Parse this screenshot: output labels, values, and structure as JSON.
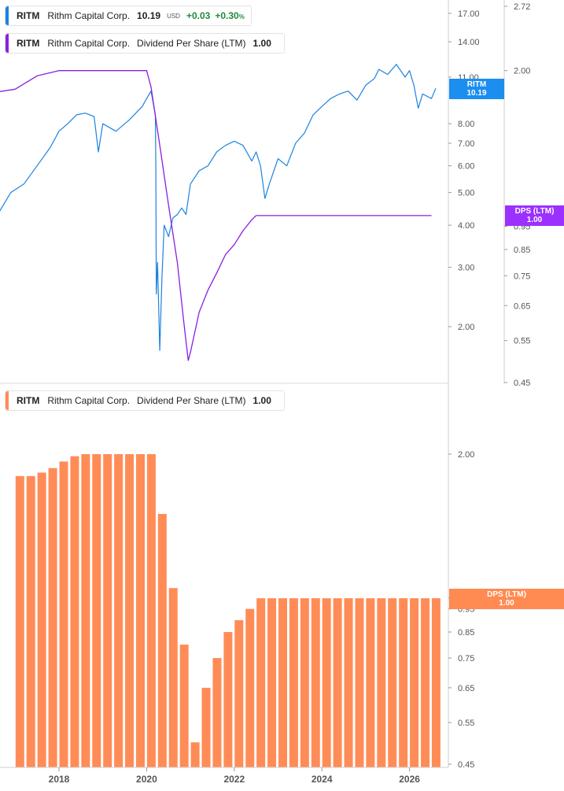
{
  "colors": {
    "price": "#1b83e0",
    "dps_line": "#8a1fe0",
    "dps_bars": "#ff8c57",
    "tag_price": "#1b8ef0",
    "tag_dps_top": "#9b30ff",
    "tag_dps_bottom": "#ff8a52",
    "positive": "#1f8a3a"
  },
  "legend_price": {
    "ticker": "RITM",
    "name": "Rithm Capital Corp.",
    "price": "10.19",
    "currency": "USD",
    "change": "+0.03",
    "change_pct": "+0.30",
    "pct_sign": "%"
  },
  "legend_dps_top": {
    "ticker": "RITM",
    "name": "Rithm Capital Corp.",
    "metric": "Dividend Per Share (LTM)",
    "value": "1.00"
  },
  "legend_dps_bottom": {
    "ticker": "RITM",
    "name": "Rithm Capital Corp.",
    "metric": "Dividend Per Share (LTM)",
    "value": "1.00"
  },
  "tags": {
    "price_label": "RITM",
    "price_value": "10.19",
    "dps_top_label": "DPS (LTM)",
    "dps_top_value": "1.00",
    "dps_bottom_label": "DPS (LTM)",
    "dps_bottom_value": "1.00"
  },
  "chart_data": [
    {
      "type": "line",
      "scale": "log",
      "series": [
        {
          "name": "RITM",
          "x": [
            2016.0,
            2016.3,
            2016.6,
            2016.9,
            2017.2,
            2017.5,
            2017.8,
            2018.0,
            2018.2,
            2018.4,
            2018.6,
            2018.8,
            2018.9,
            2019.0,
            2019.3,
            2019.6,
            2019.9,
            2020.0,
            2020.1,
            2020.2,
            2020.21,
            2020.22,
            2020.25,
            2020.3,
            2020.35,
            2020.4,
            2020.5,
            2020.6,
            2020.7,
            2020.8,
            2020.9,
            2021.0,
            2021.2,
            2021.4,
            2021.6,
            2021.8,
            2022.0,
            2022.2,
            2022.4,
            2022.5,
            2022.6,
            2022.7,
            2022.8,
            2023.0,
            2023.2,
            2023.4,
            2023.6,
            2023.8,
            2024.0,
            2024.2,
            2024.4,
            2024.6,
            2024.8,
            2025.0,
            2025.2,
            2025.3,
            2025.5,
            2025.7,
            2025.9,
            2026.0,
            2026.1,
            2026.2,
            2026.3,
            2026.5,
            2026.6
          ],
          "values": [
            3.0,
            3.4,
            4.3,
            5.0,
            5.3,
            6.0,
            6.8,
            7.6,
            8.0,
            8.5,
            8.6,
            8.4,
            6.6,
            8.0,
            7.6,
            8.2,
            9.0,
            9.5,
            10.0,
            8.5,
            6.0,
            2.5,
            3.1,
            1.7,
            2.8,
            4.0,
            3.7,
            4.2,
            4.3,
            4.5,
            4.3,
            5.3,
            5.8,
            6.0,
            6.6,
            6.9,
            7.1,
            6.9,
            6.2,
            6.6,
            6.0,
            4.8,
            5.3,
            6.3,
            6.0,
            7.0,
            7.5,
            8.5,
            9.0,
            9.5,
            9.8,
            10.0,
            9.4,
            10.4,
            10.9,
            11.6,
            11.2,
            12.0,
            11.0,
            11.5,
            10.4,
            8.9,
            9.8,
            9.5,
            10.19
          ]
        },
        {
          "name": "DPS (LTM)",
          "x": [
            2016.0,
            2016.5,
            2017.0,
            2017.5,
            2018.0,
            2018.5,
            2019.0,
            2019.5,
            2020.0,
            2020.1,
            2020.3,
            2020.5,
            2020.7,
            2020.85,
            2020.95,
            2021.0,
            2021.2,
            2021.4,
            2021.6,
            2021.8,
            2022.0,
            2022.2,
            2022.4,
            2022.5,
            2023.0,
            2023.5,
            2024.0,
            2024.5,
            2025.0,
            2025.5,
            2026.0,
            2026.5
          ],
          "values": [
            1.8,
            1.8,
            1.83,
            1.95,
            2.0,
            2.0,
            2.0,
            2.0,
            2.0,
            1.85,
            1.4,
            1.05,
            0.8,
            0.6,
            0.5,
            0.52,
            0.63,
            0.7,
            0.76,
            0.83,
            0.87,
            0.93,
            0.98,
            1.0,
            1.0,
            1.0,
            1.0,
            1.0,
            1.0,
            1.0,
            1.0,
            1.0
          ]
        }
      ],
      "yaxis_price": {
        "ticks": [
          "2.00",
          "3.00",
          "4.00",
          "5.00",
          "6.00",
          "7.00",
          "8.00",
          "11.00",
          "14.00",
          "17.00"
        ]
      },
      "yaxis_dps": {
        "ticks": [
          "0.45",
          "0.55",
          "0.65",
          "0.75",
          "0.85",
          "0.95",
          "2.00",
          "2.72"
        ]
      }
    },
    {
      "type": "bar",
      "scale": "log",
      "x": [
        2017.0,
        2017.25,
        2017.5,
        2017.75,
        2018.0,
        2018.25,
        2018.5,
        2018.75,
        2019.0,
        2019.25,
        2019.5,
        2019.75,
        2020.0,
        2020.25,
        2020.5,
        2020.75,
        2021.0,
        2021.25,
        2021.5,
        2021.75,
        2022.0,
        2022.25,
        2022.5,
        2022.75,
        2023.0,
        2023.25,
        2023.5,
        2023.75,
        2024.0,
        2024.25,
        2024.5,
        2024.75,
        2025.0,
        2025.25,
        2025.5,
        2025.75,
        2026.0,
        2026.25,
        2026.5
      ],
      "values": [
        1.8,
        1.8,
        1.83,
        1.87,
        1.93,
        1.98,
        2.0,
        2.0,
        2.0,
        2.0,
        2.0,
        2.0,
        2.0,
        1.5,
        1.05,
        0.8,
        0.5,
        0.65,
        0.75,
        0.85,
        0.9,
        0.95,
        1.0,
        1.0,
        1.0,
        1.0,
        1.0,
        1.0,
        1.0,
        1.0,
        1.0,
        1.0,
        1.0,
        1.0,
        1.0,
        1.0,
        1.0,
        1.0,
        1.0
      ],
      "yaxis": {
        "ticks": [
          "0.45",
          "0.55",
          "0.65",
          "0.75",
          "0.85",
          "0.95",
          "1.00",
          "2.00"
        ]
      },
      "xaxis": {
        "ticks": [
          "2018",
          "2020",
          "2022",
          "2024",
          "2026"
        ]
      }
    }
  ]
}
